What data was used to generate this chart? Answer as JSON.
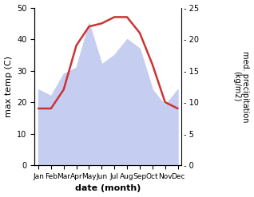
{
  "months": [
    "Jan",
    "Feb",
    "Mar",
    "Apr",
    "May",
    "Jun",
    "Jul",
    "Aug",
    "Sep",
    "Oct",
    "Nov",
    "Dec"
  ],
  "temp": [
    18,
    18,
    24,
    38,
    44,
    45,
    47,
    47,
    42,
    32,
    20,
    18
  ],
  "precip": [
    24,
    22,
    29,
    31,
    45,
    32,
    35,
    40,
    37,
    24,
    19,
    24
  ],
  "temp_color": "#cc3333",
  "precip_fill_color": "#c5cdf0",
  "left_ylim": [
    0,
    50
  ],
  "right_ylim": [
    0,
    25
  ],
  "left_yticks": [
    0,
    10,
    20,
    30,
    40,
    50
  ],
  "right_yticks": [
    0,
    5,
    10,
    15,
    20,
    25
  ],
  "right_yticklabels": [
    "0",
    "5",
    "10",
    "15",
    "20",
    ""
  ],
  "xlabel": "date (month)",
  "ylabel_left": "max temp (C)",
  "ylabel_right": "med. precipitation\n(kg/m2)",
  "temp_linewidth": 1.8,
  "background_color": "#ffffff"
}
